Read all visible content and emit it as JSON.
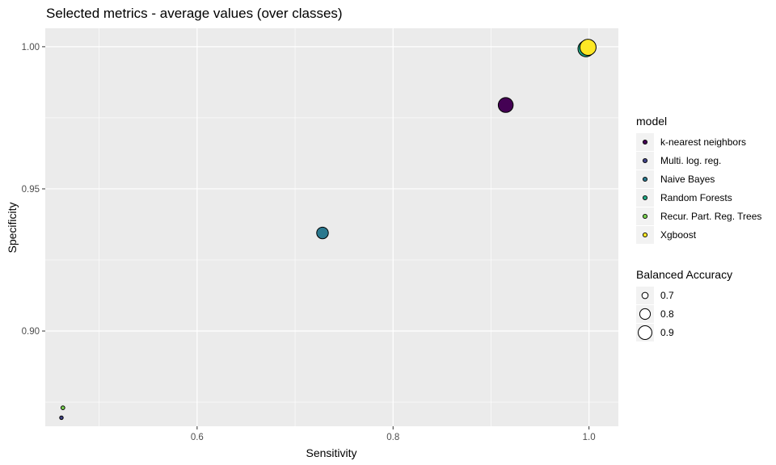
{
  "chart_data": {
    "type": "scatter",
    "title": "Selected metrics - average values (over classes)",
    "xlabel": "Sensitivity",
    "ylabel": "Specificity",
    "xlim": [
      0.445,
      1.03
    ],
    "ylim": [
      0.8665,
      1.0065
    ],
    "xticks": [
      {
        "value": 0.6,
        "label": "0.6"
      },
      {
        "value": 0.8,
        "label": "0.8"
      },
      {
        "value": 1.0,
        "label": "1.0"
      }
    ],
    "yticks": [
      {
        "value": 0.9,
        "label": "0.90"
      },
      {
        "value": 0.95,
        "label": "0.95"
      },
      {
        "value": 1.0,
        "label": "1.00"
      }
    ],
    "grid": true,
    "background": "#ebebeb",
    "colors": {
      "k-nearest neighbors": "#440154",
      "Multi. log. reg.": "#414487",
      "Naive Bayes": "#2a788e",
      "Random Forests": "#22a884",
      "Recur. Part. Reg. Trees": "#7ad151",
      "Xgboost": "#fde725"
    },
    "color_legend": {
      "title": "model",
      "entries": [
        "k-nearest neighbors",
        "Multi. log. reg.",
        "Naive Bayes",
        "Random Forests",
        "Recur. Part. Reg. Trees",
        "Xgboost"
      ]
    },
    "size_legend": {
      "title": "Balanced Accuracy",
      "entries": [
        {
          "value": 0.7,
          "label": "0.7"
        },
        {
          "value": 0.8,
          "label": "0.8"
        },
        {
          "value": 0.9,
          "label": "0.9"
        }
      ]
    },
    "series": [
      {
        "name": "Multi. log. reg.",
        "x": 0.4615,
        "y": 0.8695,
        "balanced_accuracy": 0.6655
      },
      {
        "name": "Recur. Part. Reg. Trees",
        "x": 0.463,
        "y": 0.873,
        "balanced_accuracy": 0.668
      },
      {
        "name": "Naive Bayes",
        "x": 0.728,
        "y": 0.9345,
        "balanced_accuracy": 0.8313
      },
      {
        "name": "k-nearest neighbors",
        "x": 0.915,
        "y": 0.9795,
        "balanced_accuracy": 0.9473
      },
      {
        "name": "Random Forests",
        "x": 0.997,
        "y": 0.9993,
        "balanced_accuracy": 0.998
      },
      {
        "name": "Xgboost",
        "x": 0.999,
        "y": 0.9998,
        "balanced_accuracy": 0.999
      }
    ]
  }
}
